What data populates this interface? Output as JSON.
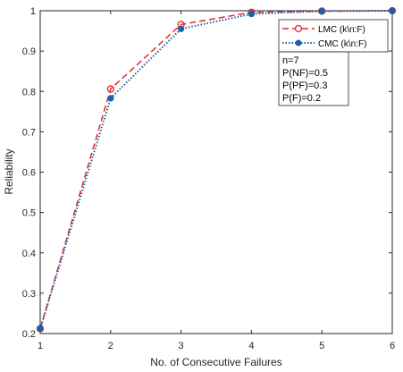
{
  "chart_data": {
    "type": "line",
    "xlabel": "No. of Consecutive Failures",
    "ylabel": "Reliability",
    "xlim": [
      1,
      6
    ],
    "ylim": [
      0.2,
      1
    ],
    "xticks": [
      "1",
      "2",
      "3",
      "4",
      "5",
      "6"
    ],
    "yticks": [
      "0.2",
      "0.3",
      "0.4",
      "0.5",
      "0.6",
      "0.7",
      "0.8",
      "0.9",
      "1"
    ],
    "grid": false,
    "legend_position": "top-right",
    "x": [
      1,
      2,
      3,
      4,
      5,
      6
    ],
    "series": [
      {
        "name": "LMC (k\\n:F)",
        "values": [
          0.212,
          0.806,
          0.966,
          0.996,
          0.999,
          1.0
        ],
        "color": "#e8262a",
        "style": "dashed",
        "marker": "open-circle"
      },
      {
        "name": "CMC (k\\n:F)",
        "values": [
          0.212,
          0.783,
          0.955,
          0.992,
          0.999,
          1.0
        ],
        "color": "#1f5fa8",
        "style": "dotted",
        "marker": "filled-circle"
      }
    ],
    "annotation": [
      "n=7",
      "P(NF)=0.5",
      "P(PF)=0.3",
      "P(F)=0.2"
    ]
  }
}
